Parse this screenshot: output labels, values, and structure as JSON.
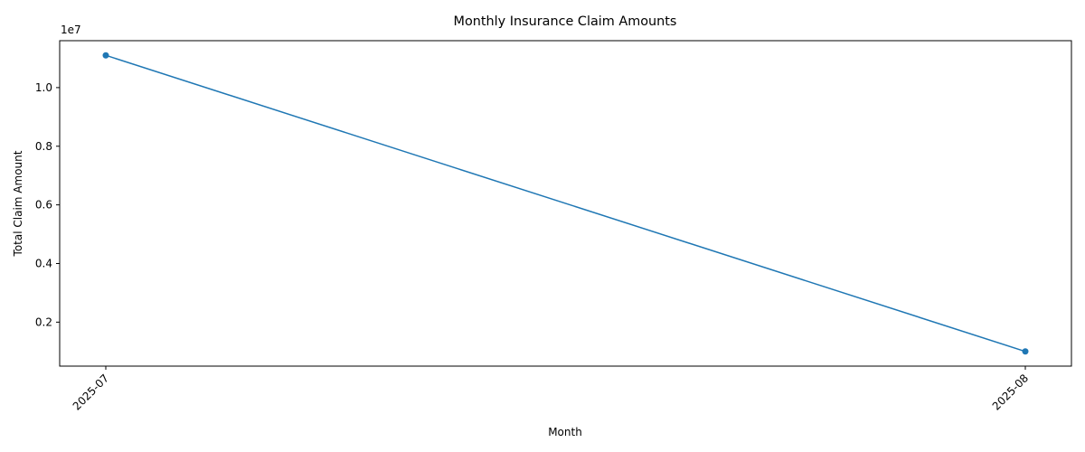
{
  "chart_data": {
    "type": "line",
    "title": "Monthly Insurance Claim Amounts",
    "xlabel": "Month",
    "ylabel": "Total Claim Amount",
    "y_offset_label": "1e7",
    "categories": [
      "2025-07",
      "2025-08"
    ],
    "series": [
      {
        "values": [
          11100000,
          1000000
        ],
        "color": "#1f77b4",
        "marker": "circle"
      }
    ],
    "ylim": [
      500000,
      11600000
    ],
    "y_ticks": [
      2000000,
      4000000,
      6000000,
      8000000,
      10000000
    ],
    "y_tick_labels": [
      "0.2",
      "0.4",
      "0.6",
      "0.8",
      "1.0"
    ],
    "x_tick_rotation": "45 degrees",
    "grid": false,
    "legend": "none"
  }
}
